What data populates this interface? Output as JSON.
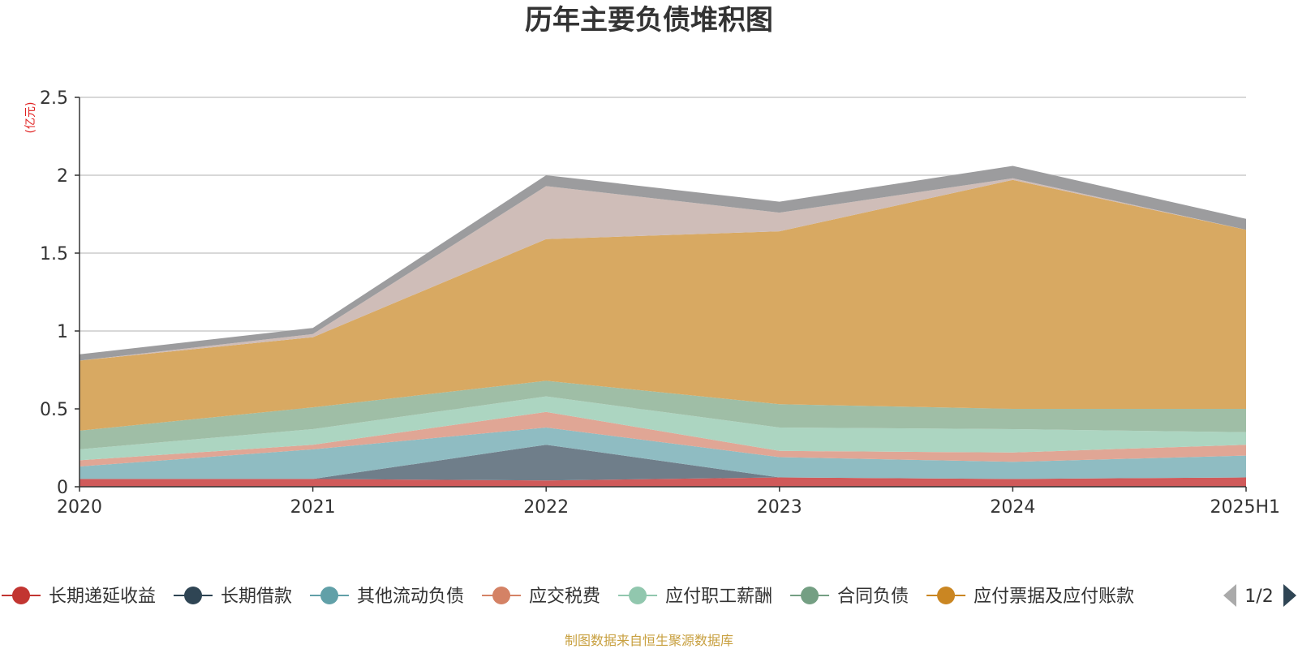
{
  "chart_data": {
    "type": "area",
    "stacked": true,
    "title": "历年主要负债堆积图",
    "unit_label": "(亿元)",
    "categories": [
      "2020",
      "2021",
      "2022",
      "2023",
      "2024",
      "2025H1"
    ],
    "ylim": [
      0,
      2.5
    ],
    "yticks": [
      0,
      0.5,
      1,
      1.5,
      2,
      2.5
    ],
    "ytick_labels": [
      "0",
      "0.5",
      "1",
      "1.5",
      "2",
      "2.5"
    ],
    "grid": true,
    "series": [
      {
        "name": "长期递延收益",
        "color": "#d05a5a",
        "values": [
          0.05,
          0.05,
          0.04,
          0.06,
          0.05,
          0.06
        ]
      },
      {
        "name": "长期借款",
        "color": "#6f7e8a",
        "values": [
          0.0,
          0.0,
          0.23,
          0.0,
          0.0,
          0.0
        ]
      },
      {
        "name": "其他流动负债",
        "color": "#8fbcc2",
        "values": [
          0.08,
          0.19,
          0.11,
          0.13,
          0.11,
          0.14
        ]
      },
      {
        "name": "应交税费",
        "color": "#e0a695",
        "values": [
          0.04,
          0.03,
          0.1,
          0.04,
          0.06,
          0.07
        ]
      },
      {
        "name": "应付职工薪酬",
        "color": "#acd5c1",
        "values": [
          0.07,
          0.1,
          0.1,
          0.15,
          0.15,
          0.08
        ]
      },
      {
        "name": "合同负债",
        "color": "#9fbea6",
        "values": [
          0.12,
          0.14,
          0.1,
          0.15,
          0.13,
          0.15
        ]
      },
      {
        "name": "应付票据及应付账款",
        "color": "#d8a962",
        "values": [
          0.45,
          0.45,
          0.91,
          1.11,
          1.47,
          1.15
        ]
      },
      {
        "name": "",
        "color": "#cfbdb8",
        "values": [
          0.0,
          0.02,
          0.34,
          0.12,
          0.01,
          0.0
        ]
      },
      {
        "name": "",
        "color": "#9c9c9e",
        "values": [
          0.04,
          0.04,
          0.07,
          0.07,
          0.08,
          0.07
        ]
      }
    ],
    "legend": {
      "placement": "bottom",
      "items": [
        {
          "label": "长期递延收益",
          "color": "#c23531"
        },
        {
          "label": "长期借款",
          "color": "#2f4554"
        },
        {
          "label": "其他流动负债",
          "color": "#61a0a8"
        },
        {
          "label": "应交税费",
          "color": "#d48265"
        },
        {
          "label": "应付职工薪酬",
          "color": "#91c7ae"
        },
        {
          "label": "合同负债",
          "color": "#749f83"
        },
        {
          "label": "应付票据及应付账款",
          "color": "#ca8622"
        }
      ],
      "page_text": "1/2"
    },
    "source": "制图数据来自恒生聚源数据库"
  }
}
